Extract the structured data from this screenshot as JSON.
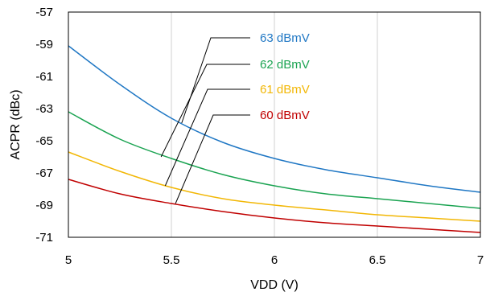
{
  "chart_data": {
    "type": "line",
    "xlabel": "VDD (V)",
    "ylabel": "ACPR (dBc)",
    "xlim": [
      5,
      7
    ],
    "ylim": [
      -71,
      -57
    ],
    "x_ticks": [
      "5",
      "5.5",
      "6",
      "6.5",
      "7"
    ],
    "y_ticks": [
      "-57",
      "-59",
      "-61",
      "-63",
      "-65",
      "-67",
      "-69",
      "-71"
    ],
    "grid": "vertical",
    "x": [
      5,
      5.25,
      5.5,
      5.75,
      6,
      6.25,
      6.5,
      6.75,
      7
    ],
    "series": [
      {
        "name": "63 dBmV",
        "color": "#1F77C4",
        "values": [
          -59.1,
          -61.5,
          -63.6,
          -65.1,
          -66.1,
          -66.8,
          -67.3,
          -67.8,
          -68.2
        ],
        "label_x": 5.55,
        "label_y": -63.9
      },
      {
        "name": "62 dBmV",
        "color": "#1AA351",
        "values": [
          -63.2,
          -64.9,
          -66.1,
          -67.1,
          -67.8,
          -68.3,
          -68.6,
          -68.9,
          -69.2
        ],
        "label_x": 5.45,
        "label_y": -66.0
      },
      {
        "name": "61 dBmV",
        "color": "#F2B705",
        "values": [
          -65.7,
          -66.9,
          -67.9,
          -68.6,
          -69.0,
          -69.3,
          -69.6,
          -69.8,
          -70.0
        ],
        "label_x": 5.47,
        "label_y": -67.8
      },
      {
        "name": "60 dBmV",
        "color": "#C00000",
        "values": [
          -67.4,
          -68.3,
          -68.9,
          -69.4,
          -69.8,
          -70.1,
          -70.3,
          -70.5,
          -70.7
        ],
        "label_x": 5.52,
        "label_y": -68.9
      }
    ]
  }
}
